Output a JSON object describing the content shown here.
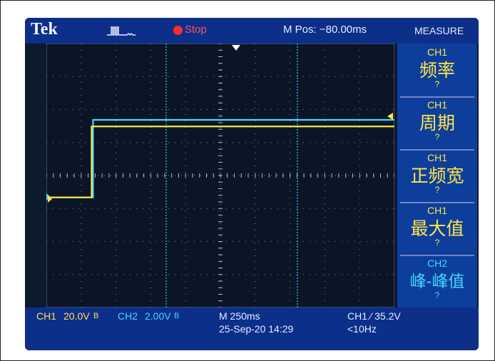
{
  "topbar": {
    "brand": "Tek",
    "run_state": "Stop",
    "m_pos": "M Pos: −80.00ms",
    "trigger_icon": "acquisition-trigger-icon"
  },
  "measure_panel": {
    "title": "MEASURE",
    "items": [
      {
        "source": "CH1",
        "name": "频率",
        "value": "?"
      },
      {
        "source": "CH1",
        "name": "周期",
        "value": "?"
      },
      {
        "source": "CH1",
        "name": "正频宽",
        "value": "?"
      },
      {
        "source": "CH1",
        "name": "最大值",
        "value": "?"
      },
      {
        "source": "CH2",
        "name": "峰-峰值",
        "value": "?"
      }
    ]
  },
  "bottombar": {
    "ch1_label": "CH1",
    "ch1_scale": "20.0V",
    "ch1_bw": "B",
    "ch2_label": "CH2",
    "ch2_scale": "2.00V",
    "ch2_bw": "B",
    "timebase": "M 250ms",
    "trigger": "CH1 ∕ 35.2V",
    "date_time": "25-Sep-20 14:29",
    "freq": "<10Hz"
  },
  "colors": {
    "ch1": "#ffe44a",
    "ch2": "#45d6ff",
    "ui_blue": "#0c2f8a",
    "panel_blue": "#0d3e9b",
    "stop": "#ff2a2a"
  },
  "waveforms": {
    "ch1": {
      "low_div": 0.05,
      "high_div": 2.2,
      "step_at_div": 1.3
    },
    "ch2": {
      "low_div": 0.05,
      "high_div": 2.4,
      "step_at_div": 1.3
    }
  }
}
